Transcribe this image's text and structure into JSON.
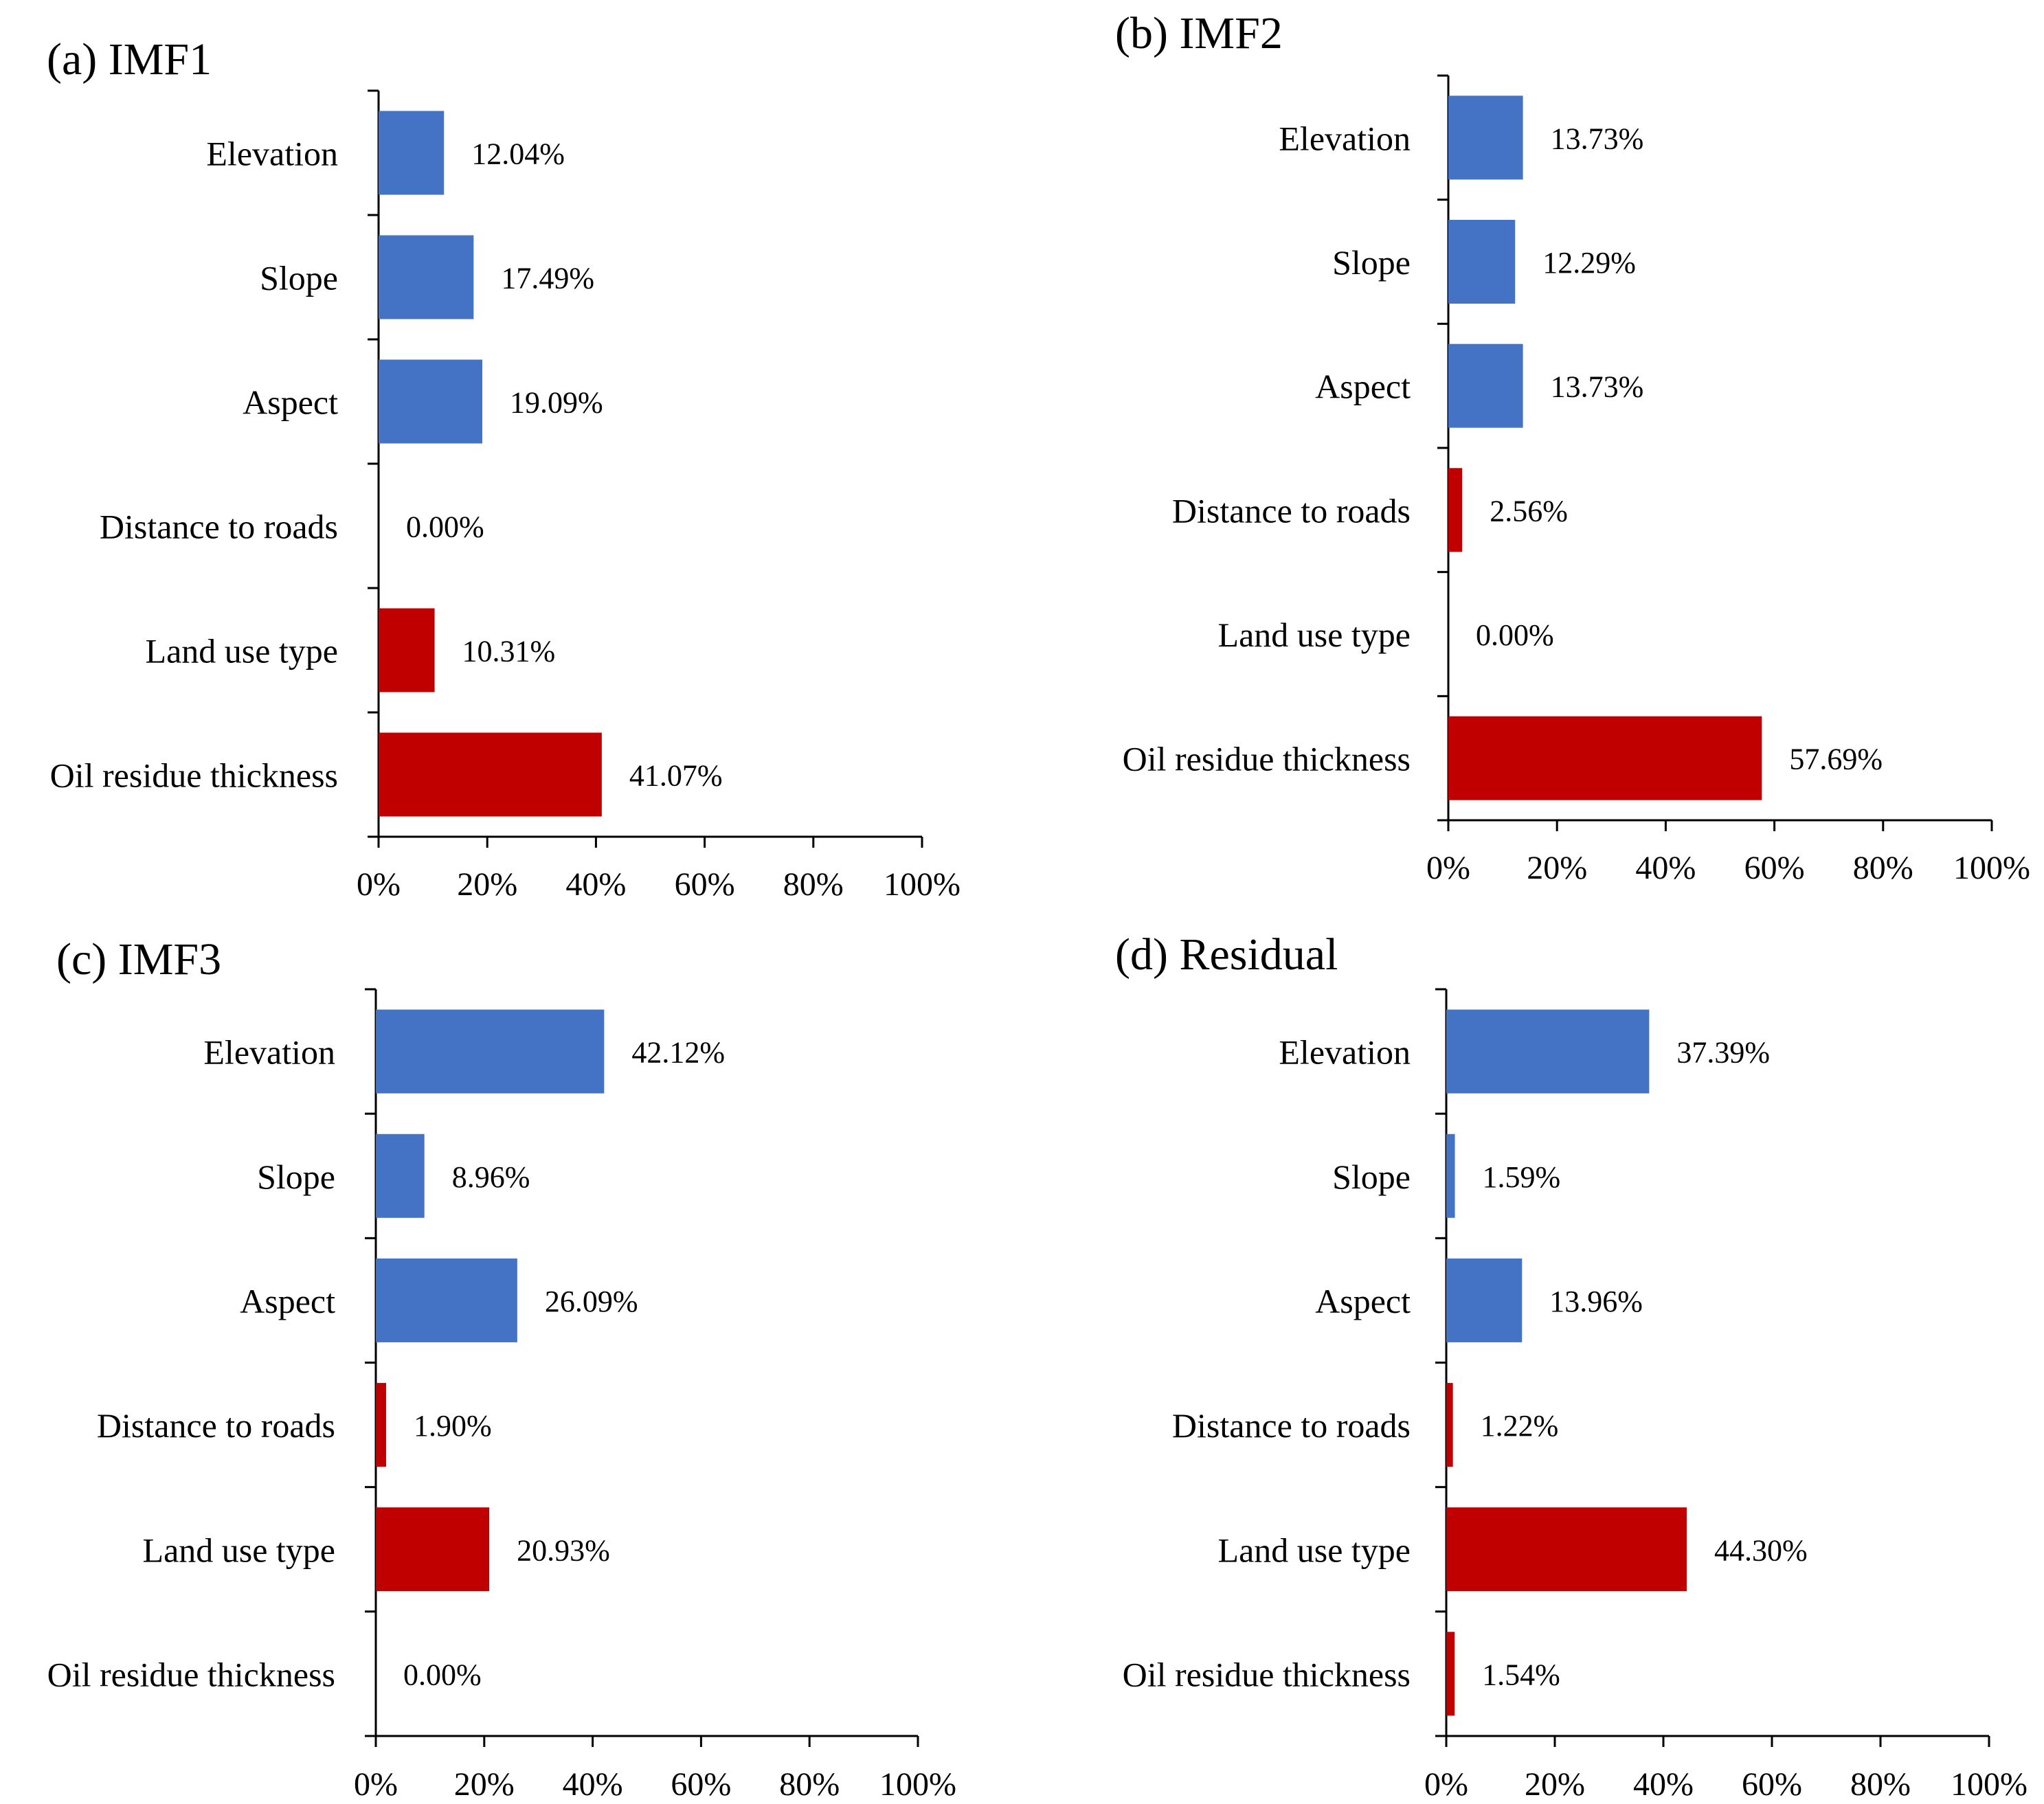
{
  "colors": {
    "blue": "#4472C4",
    "red": "#C00000"
  },
  "chart_data": [
    {
      "type": "bar",
      "orientation": "horizontal",
      "title": "(a) IMF1",
      "categories": [
        "Elevation",
        "Slope",
        "Aspect",
        "Distance to roads",
        "Land use type",
        "Oil residue thickness"
      ],
      "values": [
        12.04,
        17.49,
        19.09,
        0.0,
        10.31,
        41.07
      ],
      "value_labels": [
        "12.04%",
        "17.49%",
        "19.09%",
        "0.00%",
        "10.31%",
        "41.07%"
      ],
      "bar_colors": [
        "blue",
        "blue",
        "blue",
        "red",
        "red",
        "red"
      ],
      "xlim": [
        0,
        100
      ],
      "xticks": [
        "0%",
        "20%",
        "40%",
        "60%",
        "80%",
        "100%"
      ]
    },
    {
      "type": "bar",
      "orientation": "horizontal",
      "title": "(b) IMF2",
      "categories": [
        "Elevation",
        "Slope",
        "Aspect",
        "Distance to roads",
        "Land use type",
        "Oil residue thickness"
      ],
      "values": [
        13.73,
        12.29,
        13.73,
        2.56,
        0.0,
        57.69
      ],
      "value_labels": [
        "13.73%",
        "12.29%",
        "13.73%",
        "2.56%",
        "0.00%",
        "57.69%"
      ],
      "bar_colors": [
        "blue",
        "blue",
        "blue",
        "red",
        "red",
        "red"
      ],
      "xlim": [
        0,
        100
      ],
      "xticks": [
        "0%",
        "20%",
        "40%",
        "60%",
        "80%",
        "100%"
      ]
    },
    {
      "type": "bar",
      "orientation": "horizontal",
      "title": "(c) IMF3",
      "categories": [
        "Elevation",
        "Slope",
        "Aspect",
        "Distance to roads",
        "Land use type",
        "Oil residue thickness"
      ],
      "values": [
        42.12,
        8.96,
        26.09,
        1.9,
        20.93,
        0.0
      ],
      "value_labels": [
        "42.12%",
        "8.96%",
        "26.09%",
        "1.90%",
        "20.93%",
        "0.00%"
      ],
      "bar_colors": [
        "blue",
        "blue",
        "blue",
        "red",
        "red",
        "red"
      ],
      "xlim": [
        0,
        100
      ],
      "xticks": [
        "0%",
        "20%",
        "40%",
        "60%",
        "80%",
        "100%"
      ]
    },
    {
      "type": "bar",
      "orientation": "horizontal",
      "title": "(d) Residual",
      "categories": [
        "Elevation",
        "Slope",
        "Aspect",
        "Distance to roads",
        "Land use type",
        "Oil residue thickness"
      ],
      "values": [
        37.39,
        1.59,
        13.96,
        1.22,
        44.3,
        1.54
      ],
      "value_labels": [
        "37.39%",
        "1.59%",
        "13.96%",
        "1.22%",
        "44.30%",
        "1.54%"
      ],
      "bar_colors": [
        "blue",
        "blue",
        "blue",
        "red",
        "red",
        "red"
      ],
      "xlim": [
        0,
        100
      ],
      "xticks": [
        "0%",
        "20%",
        "40%",
        "60%",
        "80%",
        "100%"
      ]
    }
  ]
}
